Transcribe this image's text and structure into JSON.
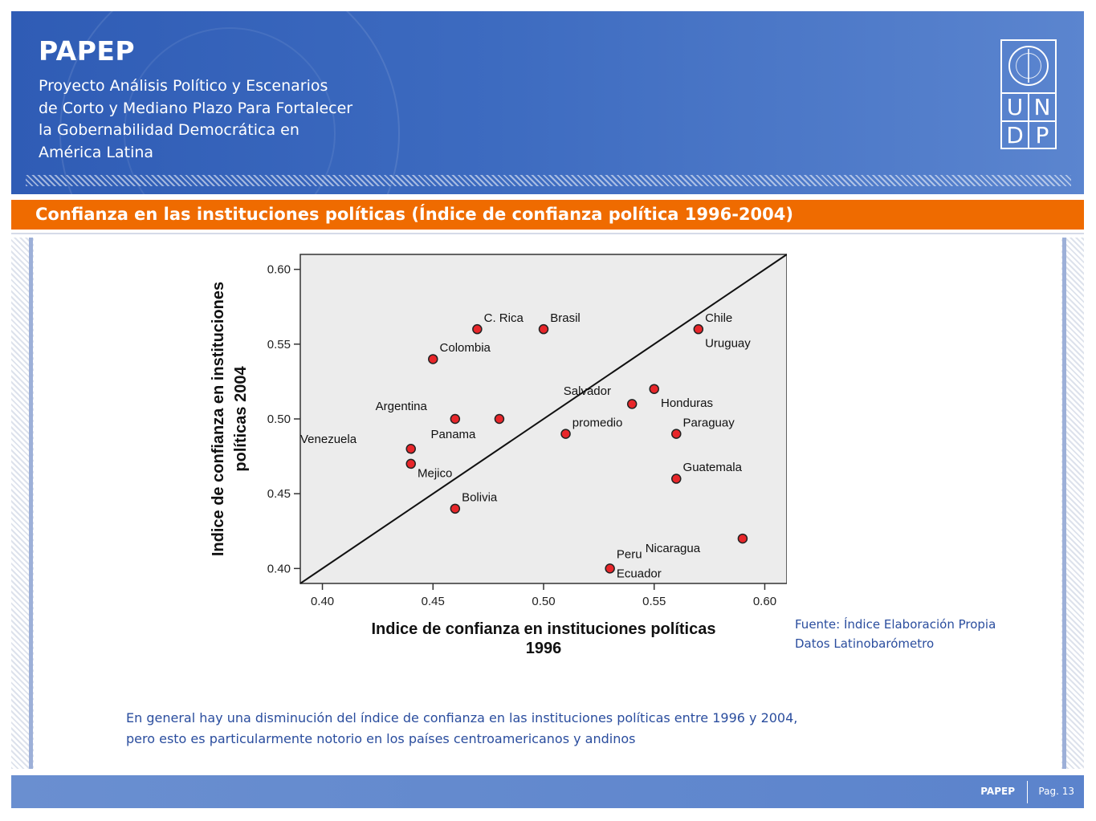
{
  "header": {
    "brand": "PAPEP",
    "subtitle_lines": [
      "Proyecto Análisis Político y Escenarios",
      "de Corto y Mediano Plazo Para Fortalecer",
      "la Gobernabilidad Democrática en",
      "América Latina"
    ],
    "logo_letters": [
      "U",
      "N",
      "D",
      "P"
    ]
  },
  "slide_title": "Confianza en las instituciones políticas (Índice de confianza política 1996-2004)",
  "chart_data": {
    "type": "scatter",
    "xlabel_lines": [
      "Indice de confianza en instituciones políticas",
      "1996"
    ],
    "ylabel_lines": [
      "Indice de confianza en instituciones",
      "políticas  2004"
    ],
    "xlim": [
      0.39,
      0.61
    ],
    "ylim": [
      0.39,
      0.61
    ],
    "xticks": [
      "0.40",
      "0.45",
      "0.50",
      "0.55",
      "0.60"
    ],
    "yticks": [
      "0.40",
      "0.45",
      "0.50",
      "0.55",
      "0.60"
    ],
    "reference_line": "y = x",
    "point_color": "#e8262a",
    "points": [
      {
        "x": 0.47,
        "y": 0.56
      },
      {
        "x": 0.5,
        "y": 0.56
      },
      {
        "x": 0.45,
        "y": 0.54
      },
      {
        "x": 0.57,
        "y": 0.56
      },
      {
        "x": 0.55,
        "y": 0.52
      },
      {
        "x": 0.54,
        "y": 0.51
      },
      {
        "x": 0.46,
        "y": 0.5
      },
      {
        "x": 0.48,
        "y": 0.5
      },
      {
        "x": 0.51,
        "y": 0.49
      },
      {
        "x": 0.56,
        "y": 0.49
      },
      {
        "x": 0.44,
        "y": 0.48
      },
      {
        "x": 0.44,
        "y": 0.47
      },
      {
        "x": 0.56,
        "y": 0.46
      },
      {
        "x": 0.46,
        "y": 0.44
      },
      {
        "x": 0.59,
        "y": 0.42
      },
      {
        "x": 0.53,
        "y": 0.4
      }
    ],
    "labels": [
      {
        "text": "C. Rica",
        "x": 0.473,
        "y": 0.565
      },
      {
        "text": "Brasil",
        "x": 0.503,
        "y": 0.565
      },
      {
        "text": "Colombia",
        "x": 0.453,
        "y": 0.545
      },
      {
        "text": "Chile",
        "x": 0.573,
        "y": 0.565
      },
      {
        "text": "Uruguay",
        "x": 0.573,
        "y": 0.548
      },
      {
        "text": "Salvador",
        "x": 0.509,
        "y": 0.516
      },
      {
        "text": "Honduras",
        "x": 0.553,
        "y": 0.508
      },
      {
        "text": "Argentina",
        "x": 0.424,
        "y": 0.506
      },
      {
        "text": "promedio",
        "x": 0.513,
        "y": 0.495
      },
      {
        "text": "Paraguay",
        "x": 0.563,
        "y": 0.495
      },
      {
        "text": "Panama",
        "x": 0.449,
        "y": 0.487
      },
      {
        "text": "Venezuela",
        "x": 0.39,
        "y": 0.484
      },
      {
        "text": "Guatemala",
        "x": 0.563,
        "y": 0.465
      },
      {
        "text": "Mejico",
        "x": 0.443,
        "y": 0.461
      },
      {
        "text": "Bolivia",
        "x": 0.463,
        "y": 0.445
      },
      {
        "text": "Nicaragua",
        "x": 0.546,
        "y": 0.411
      },
      {
        "text": "Peru",
        "x": 0.533,
        "y": 0.407
      },
      {
        "text": "Ecuador",
        "x": 0.533,
        "y": 0.394
      }
    ]
  },
  "source_lines": [
    "Fuente:  Índice Elaboración Propia",
    "Datos Latinobarómetro"
  ],
  "conclusion_lines": [
    "En general hay una disminución del índice de confianza en las instituciones políticas entre 1996 y 2004,",
    "pero esto es particularmente  notorio en los países centroamericanos  y andinos"
  ],
  "footer": {
    "brand": "PAPEP",
    "page": "Pag. 13"
  }
}
